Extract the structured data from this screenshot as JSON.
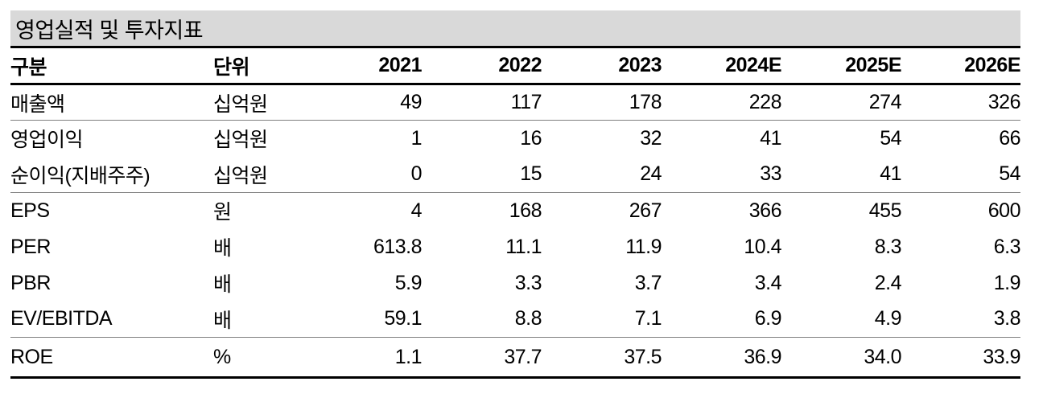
{
  "title": "영업실적 및 투자지표",
  "table": {
    "columns": [
      "구분",
      "단위",
      "2021",
      "2022",
      "2023",
      "2024E",
      "2025E",
      "2026E"
    ],
    "rows": [
      {
        "label": "매출액",
        "unit": "십억원",
        "values": [
          "49",
          "117",
          "178",
          "228",
          "274",
          "326"
        ],
        "section_end": true
      },
      {
        "label": "영업이익",
        "unit": "십억원",
        "values": [
          "1",
          "16",
          "32",
          "41",
          "54",
          "66"
        ],
        "section_end": false
      },
      {
        "label": "순이익(지배주주)",
        "unit": "십억원",
        "values": [
          "0",
          "15",
          "24",
          "33",
          "41",
          "54"
        ],
        "section_end": true
      },
      {
        "label": "EPS",
        "unit": "원",
        "values": [
          "4",
          "168",
          "267",
          "366",
          "455",
          "600"
        ],
        "section_end": false
      },
      {
        "label": "PER",
        "unit": "배",
        "values": [
          "613.8",
          "11.1",
          "11.9",
          "10.4",
          "8.3",
          "6.3"
        ],
        "section_end": false
      },
      {
        "label": "PBR",
        "unit": "배",
        "values": [
          "5.9",
          "3.3",
          "3.7",
          "3.4",
          "2.4",
          "1.9"
        ],
        "section_end": false
      },
      {
        "label": "EV/EBITDA",
        "unit": "배",
        "values": [
          "59.1",
          "8.8",
          "7.1",
          "6.9",
          "4.9",
          "3.8"
        ],
        "section_end": true
      },
      {
        "label": "ROE",
        "unit": "%",
        "values": [
          "1.1",
          "37.7",
          "37.5",
          "36.9",
          "34.0",
          "33.9"
        ],
        "section_end": false
      }
    ]
  },
  "colors": {
    "title_background": "#d9d9d9",
    "rule_heavy": "#000000",
    "rule_light": "#7f7f7f",
    "text": "#000000"
  }
}
